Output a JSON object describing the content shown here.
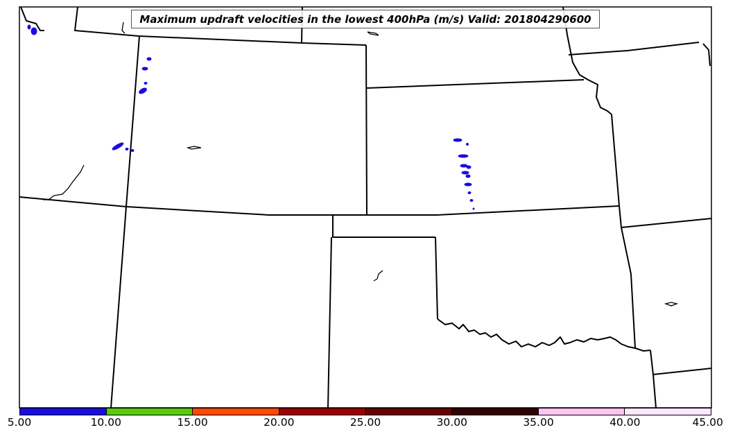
{
  "title": "Maximum updraft velocities in the lowest 400hPa (m/s) Valid: 201804290600",
  "colorbar": {
    "colors": [
      "#1a0be0",
      "#57cc0a",
      "#ff4a00",
      "#9a0000",
      "#6a0000",
      "#340000",
      "#ffc4f4",
      "#ffe8fc"
    ],
    "ticks": [
      "5.00",
      "10.00",
      "15.00",
      "20.00",
      "25.00",
      "30.00",
      "35.00",
      "40.00",
      "45.00"
    ]
  },
  "colors": {
    "updraft_5_10": "#1a0be0",
    "border": "#000000",
    "background": "#ffffff"
  }
}
